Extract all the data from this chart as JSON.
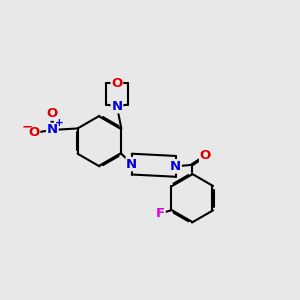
{
  "bg_color": "#e8e8e8",
  "atom_colors": {
    "N": "#0000dd",
    "O": "#dd0000",
    "F": "#dd00dd",
    "C": "#000000"
  },
  "font_size": 9.5,
  "lw": 1.5,
  "sep": 0.045
}
